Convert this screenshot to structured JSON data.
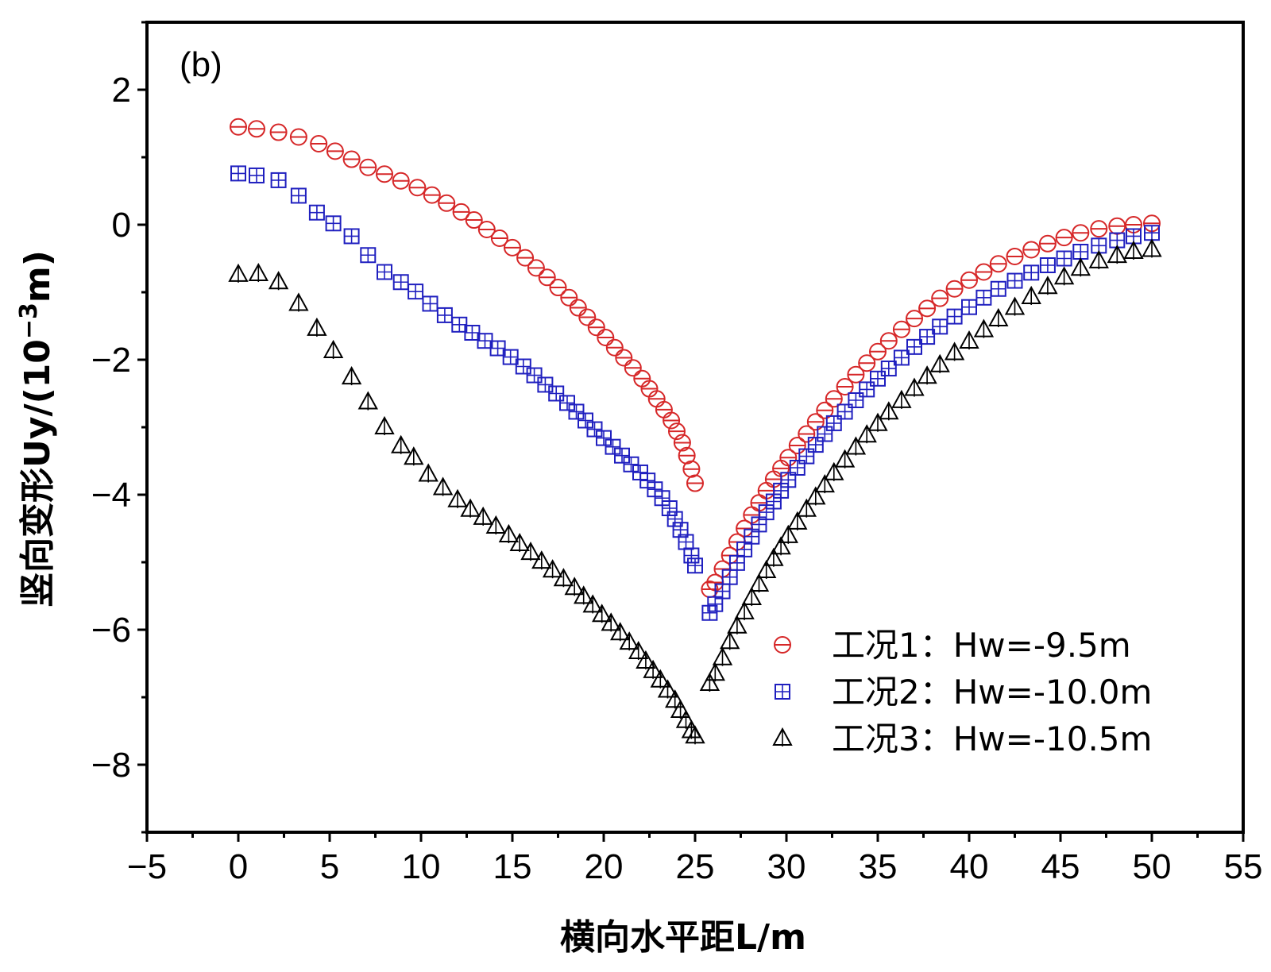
{
  "chart_data": {
    "type": "scatter",
    "panel_label": "(b)",
    "xlabel": "横向水平距L/m",
    "ylabel_main": "竖向变形Uy/(10",
    "ylabel_exp": "−3",
    "ylabel_end": "m)",
    "xlim": [
      -5,
      55
    ],
    "ylim": [
      -9,
      3
    ],
    "xticks": [
      -5,
      0,
      5,
      10,
      15,
      20,
      25,
      30,
      35,
      40,
      45,
      50,
      55
    ],
    "xtick_labels": [
      "−5",
      "0",
      "5",
      "10",
      "15",
      "20",
      "25",
      "30",
      "35",
      "40",
      "45",
      "50",
      "55"
    ],
    "yticks": [
      -8,
      -6,
      -4,
      -2,
      0,
      2
    ],
    "ytick_labels": [
      "−8",
      "−6",
      "−4",
      "−2",
      "0",
      "2"
    ],
    "grid": false,
    "legend_position": "bottom-right",
    "series": [
      {
        "name": "工况1：Hw=-9.5m",
        "marker": "circle",
        "color": "#d62728",
        "left": {
          "x": [
            0,
            1,
            2.2,
            3.3,
            4.4,
            5.3,
            6.2,
            7.1,
            8,
            8.9,
            9.8,
            10.6,
            11.4,
            12.2,
            12.9,
            13.6,
            14.3,
            15,
            15.7,
            16.3,
            16.9,
            17.5,
            18.1,
            18.6,
            19.1,
            19.6,
            20.1,
            20.6,
            21.1,
            21.6,
            22.1,
            22.5,
            22.9,
            23.3,
            23.7,
            24,
            24.3,
            24.55,
            24.8,
            25
          ],
          "y": [
            1.45,
            1.42,
            1.37,
            1.3,
            1.2,
            1.09,
            0.97,
            0.85,
            0.75,
            0.65,
            0.55,
            0.44,
            0.32,
            0.19,
            0.07,
            -0.07,
            -0.2,
            -0.34,
            -0.49,
            -0.64,
            -0.78,
            -0.93,
            -1.08,
            -1.23,
            -1.37,
            -1.52,
            -1.67,
            -1.82,
            -1.97,
            -2.12,
            -2.28,
            -2.43,
            -2.58,
            -2.74,
            -2.9,
            -3.06,
            -3.23,
            -3.42,
            -3.62,
            -3.83
          ]
        },
        "right": {
          "x": [
            25.8,
            26.1,
            26.5,
            26.9,
            27.3,
            27.7,
            28.1,
            28.5,
            28.9,
            29.3,
            29.7,
            30.1,
            30.6,
            31.1,
            31.6,
            32.1,
            32.6,
            33.2,
            33.8,
            34.4,
            35,
            35.6,
            36.3,
            37,
            37.7,
            38.4,
            39.2,
            40,
            40.8,
            41.6,
            42.5,
            43.4,
            44.3,
            45.2,
            46.1,
            47.1,
            48.1,
            49,
            50
          ],
          "y": [
            -5.4,
            -5.3,
            -5.1,
            -4.9,
            -4.7,
            -4.5,
            -4.3,
            -4.12,
            -3.94,
            -3.77,
            -3.61,
            -3.45,
            -3.27,
            -3.1,
            -2.92,
            -2.75,
            -2.58,
            -2.4,
            -2.22,
            -2.05,
            -1.88,
            -1.72,
            -1.55,
            -1.39,
            -1.24,
            -1.09,
            -0.95,
            -0.82,
            -0.7,
            -0.58,
            -0.47,
            -0.37,
            -0.28,
            -0.19,
            -0.12,
            -0.06,
            -0.02,
            0.0,
            0.02
          ]
        }
      },
      {
        "name": "工况2：Hw=-10.0m",
        "marker": "square-plus",
        "color": "#1f1fbf",
        "left": {
          "x": [
            0,
            1,
            2.2,
            3.3,
            4.3,
            5.2,
            6.2,
            7.1,
            8,
            8.9,
            9.7,
            10.5,
            11.3,
            12.1,
            12.8,
            13.5,
            14.2,
            14.9,
            15.6,
            16.2,
            16.8,
            17.4,
            18,
            18.5,
            19,
            19.5,
            20,
            20.5,
            21,
            21.5,
            22,
            22.4,
            22.8,
            23.2,
            23.6,
            23.9,
            24.2,
            24.5,
            24.8,
            25
          ],
          "y": [
            0.76,
            0.73,
            0.66,
            0.43,
            0.18,
            0.02,
            -0.17,
            -0.45,
            -0.7,
            -0.85,
            -0.99,
            -1.17,
            -1.34,
            -1.48,
            -1.6,
            -1.72,
            -1.83,
            -1.96,
            -2.1,
            -2.23,
            -2.37,
            -2.5,
            -2.64,
            -2.77,
            -2.9,
            -3.03,
            -3.16,
            -3.29,
            -3.42,
            -3.55,
            -3.67,
            -3.79,
            -3.92,
            -4.05,
            -4.2,
            -4.36,
            -4.52,
            -4.7,
            -4.9,
            -5.05
          ]
        },
        "right": {
          "x": [
            25.8,
            26.1,
            26.5,
            26.9,
            27.3,
            27.7,
            28.1,
            28.5,
            28.9,
            29.3,
            29.7,
            30.1,
            30.6,
            31.1,
            31.6,
            32.1,
            32.6,
            33.2,
            33.8,
            34.4,
            35,
            35.6,
            36.3,
            37,
            37.7,
            38.4,
            39.2,
            40,
            40.8,
            41.6,
            42.5,
            43.4,
            44.3,
            45.2,
            46.1,
            47.1,
            48.1,
            49,
            50
          ],
          "y": [
            -5.75,
            -5.62,
            -5.43,
            -5.22,
            -5.01,
            -4.81,
            -4.62,
            -4.44,
            -4.26,
            -4.1,
            -3.94,
            -3.78,
            -3.6,
            -3.43,
            -3.26,
            -3.1,
            -2.94,
            -2.77,
            -2.6,
            -2.44,
            -2.28,
            -2.13,
            -1.97,
            -1.81,
            -1.66,
            -1.51,
            -1.36,
            -1.22,
            -1.08,
            -0.95,
            -0.83,
            -0.71,
            -0.6,
            -0.5,
            -0.4,
            -0.31,
            -0.23,
            -0.17,
            -0.12
          ]
        }
      },
      {
        "name": "工况3：Hw=-10.5m",
        "marker": "triangle",
        "color": "#000000",
        "left": {
          "x": [
            0,
            1.1,
            2.2,
            3.3,
            4.3,
            5.2,
            6.2,
            7.1,
            8,
            8.9,
            9.6,
            10.4,
            11.2,
            12,
            12.7,
            13.4,
            14.1,
            14.8,
            15.4,
            16,
            16.6,
            17.2,
            17.8,
            18.4,
            18.9,
            19.4,
            19.9,
            20.4,
            20.9,
            21.4,
            21.9,
            22.3,
            22.7,
            23.1,
            23.5,
            23.9,
            24.2,
            24.5,
            24.8,
            25
          ],
          "y": [
            -0.74,
            -0.73,
            -0.85,
            -1.17,
            -1.54,
            -1.87,
            -2.26,
            -2.63,
            -3.0,
            -3.28,
            -3.45,
            -3.7,
            -3.9,
            -4.08,
            -4.22,
            -4.34,
            -4.47,
            -4.6,
            -4.73,
            -4.86,
            -4.99,
            -5.12,
            -5.25,
            -5.38,
            -5.51,
            -5.64,
            -5.78,
            -5.91,
            -6.05,
            -6.19,
            -6.33,
            -6.47,
            -6.61,
            -6.75,
            -6.9,
            -7.05,
            -7.2,
            -7.35,
            -7.5,
            -7.58
          ]
        },
        "right": {
          "x": [
            25.8,
            26.1,
            26.5,
            26.9,
            27.3,
            27.7,
            28.1,
            28.5,
            28.9,
            29.3,
            29.7,
            30.1,
            30.6,
            31.1,
            31.6,
            32.1,
            32.6,
            33.2,
            33.8,
            34.4,
            35,
            35.6,
            36.3,
            37,
            37.7,
            38.4,
            39.2,
            40,
            40.8,
            41.6,
            42.5,
            43.4,
            44.3,
            45.2,
            46.1,
            47.1,
            48.1,
            49,
            50
          ],
          "y": [
            -6.8,
            -6.65,
            -6.42,
            -6.18,
            -5.95,
            -5.74,
            -5.53,
            -5.33,
            -5.13,
            -4.95,
            -4.78,
            -4.61,
            -4.41,
            -4.22,
            -4.04,
            -3.86,
            -3.68,
            -3.49,
            -3.3,
            -3.12,
            -2.95,
            -2.78,
            -2.61,
            -2.43,
            -2.25,
            -2.08,
            -1.9,
            -1.73,
            -1.56,
            -1.4,
            -1.23,
            -1.07,
            -0.92,
            -0.78,
            -0.65,
            -0.54,
            -0.46,
            -0.4,
            -0.37
          ]
        }
      }
    ]
  }
}
